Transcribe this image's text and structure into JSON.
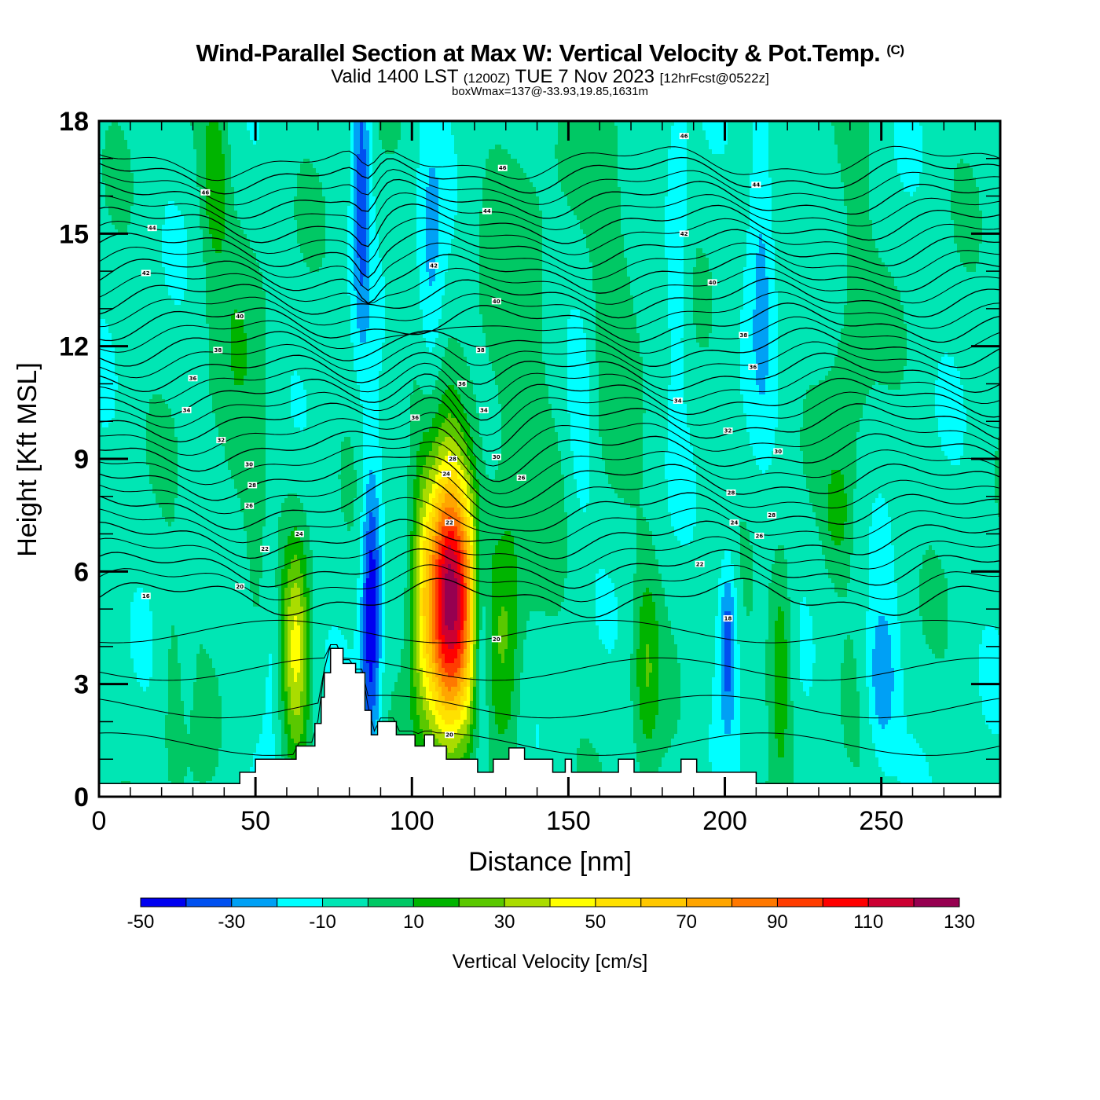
{
  "header": {
    "title": "Wind-Parallel Section at Max W: Vertical Velocity & Pot.Temp.",
    "copyright": "(C)",
    "subtitle_main_1": "Valid 1400 LST",
    "subtitle_small_1": "(1200Z)",
    "subtitle_main_2": "TUE 7 Nov 2023",
    "subtitle_small_2": "[12hrFcst@0522z]",
    "boxline": "boxWmax=137@-33.93,19.85,1631m"
  },
  "chart_data": {
    "type": "heatmap",
    "title": "Wind-Parallel Section at Max W: Vertical Velocity & Pot.Temp.",
    "xlabel": "Distance [nm]",
    "ylabel": "Height [Kft MSL]",
    "xlim": [
      0,
      288
    ],
    "ylim": [
      0,
      18
    ],
    "x_ticks": [
      "0",
      "50",
      "100",
      "150",
      "200",
      "250"
    ],
    "x_tick_values": [
      0,
      50,
      100,
      150,
      200,
      250
    ],
    "y_ticks": [
      "0",
      "3",
      "6",
      "9",
      "12",
      "15",
      "18"
    ],
    "y_tick_values": [
      0,
      3,
      6,
      9,
      12,
      15,
      18
    ],
    "colorbar": {
      "title": "Vertical Velocity [cm/s]",
      "labels": [
        "-50",
        "-30",
        "-10",
        "10",
        "30",
        "50",
        "70",
        "90",
        "110",
        "130"
      ],
      "bounds": [
        -50,
        -40,
        -30,
        -20,
        -10,
        0,
        10,
        20,
        30,
        40,
        50,
        60,
        70,
        80,
        90,
        100,
        110,
        120,
        130
      ],
      "colors": [
        "#0000f0",
        "#0050f0",
        "#00a0f5",
        "#00ffff",
        "#00e6b4",
        "#00c864",
        "#00b400",
        "#5ac800",
        "#aadc00",
        "#ffff00",
        "#ffe100",
        "#ffc800",
        "#ffa500",
        "#ff7800",
        "#ff3c00",
        "#ff0000",
        "#cc0032",
        "#960050"
      ]
    },
    "background_level": -5,
    "features": [
      {
        "x": 112,
        "z": 5.3,
        "w": 130,
        "sx": 6,
        "sz": 2.6
      },
      {
        "x": 63,
        "z": 3.8,
        "w": 45,
        "sx": 3,
        "sz": 2.2
      },
      {
        "x": 87,
        "z": 5.0,
        "w": -45,
        "sx": 2.2,
        "sz": 2.8
      },
      {
        "x": 122,
        "z": 4.3,
        "w": -35,
        "sx": 2.0,
        "sz": 2.0
      },
      {
        "x": 201,
        "z": 4.2,
        "w": -32,
        "sx": 2.0,
        "sz": 1.6
      },
      {
        "x": 250,
        "z": 3.1,
        "w": -25,
        "sx": 3.5,
        "sz": 1.5
      },
      {
        "x": 84,
        "z": 16.5,
        "w": -30,
        "sx": 2.0,
        "sz": 3.0
      },
      {
        "x": 218,
        "z": 3.5,
        "w": 25,
        "sx": 2.5,
        "sz": 2.0
      },
      {
        "x": 175,
        "z": 3.5,
        "w": 22,
        "sx": 3.0,
        "sz": 2.0
      },
      {
        "x": 130,
        "z": 4.0,
        "w": 22,
        "sx": 3.5,
        "sz": 2.5
      },
      {
        "x": 236,
        "z": 7.5,
        "w": 15,
        "sx": 3.0,
        "sz": 1.0
      },
      {
        "x": 37,
        "z": 16.5,
        "w": 22,
        "sx": 3.0,
        "sz": 1.5
      },
      {
        "x": 103,
        "z": 5.5,
        "w": 20,
        "sx": 2.5,
        "sz": 2.5
      },
      {
        "x": 45,
        "z": 10.5,
        "w": 10,
        "sx": 8.0,
        "sz": 4.0
      },
      {
        "x": 135,
        "z": 11.5,
        "w": 10,
        "sx": 10.0,
        "sz": 5.0
      },
      {
        "x": 165,
        "z": 14.0,
        "w": 10,
        "sx": 6.0,
        "sz": 4.0
      },
      {
        "x": 25,
        "z": 2.5,
        "w": 10,
        "sx": 4.0,
        "sz": 2.5
      },
      {
        "x": 240,
        "z": 13.0,
        "w": 10,
        "sx": 5.0,
        "sz": 5.0
      },
      {
        "x": 106,
        "z": 13.5,
        "w": -18,
        "sx": 3.0,
        "sz": 3.0
      },
      {
        "x": 212,
        "z": 15.0,
        "w": -18,
        "sx": 3.0,
        "sz": 3.5
      },
      {
        "x": 185,
        "z": 15.0,
        "w": -14,
        "sx": 2.5,
        "sz": 3.0
      },
      {
        "x": 55,
        "z": 4.5,
        "w": -12,
        "sx": 2.0,
        "sz": 2.0
      },
      {
        "x": 28,
        "z": 4.0,
        "w": -12,
        "sx": 2.0,
        "sz": 2.0
      },
      {
        "x": 154,
        "z": 10.0,
        "w": -12,
        "sx": 3.0,
        "sz": 2.0
      }
    ],
    "terrain": {
      "x": [
        0,
        45,
        45,
        50,
        50,
        63,
        63,
        69,
        69,
        71,
        71,
        72,
        72,
        74,
        74,
        78,
        78,
        82,
        82,
        85,
        85,
        87,
        87,
        89,
        89,
        95,
        95,
        101,
        101,
        104,
        104,
        107,
        107,
        111,
        111,
        121,
        121,
        126,
        126,
        131,
        131,
        136,
        136,
        145,
        145,
        149,
        149,
        151,
        151,
        166,
        166,
        171,
        171,
        186,
        186,
        191,
        191,
        210,
        210,
        217,
        217,
        288
      ],
      "z": [
        0.35,
        0.35,
        0.65,
        0.65,
        1.0,
        1.0,
        1.35,
        1.35,
        1.95,
        1.95,
        2.65,
        2.65,
        3.3,
        3.3,
        3.95,
        3.95,
        3.55,
        3.55,
        3.3,
        3.3,
        2.3,
        2.3,
        1.65,
        1.65,
        2.0,
        2.0,
        1.65,
        1.65,
        1.35,
        1.35,
        1.65,
        1.65,
        1.35,
        1.35,
        1.0,
        1.0,
        0.65,
        0.65,
        1.0,
        1.0,
        1.3,
        1.3,
        1.0,
        1.0,
        0.65,
        0.65,
        1.0,
        1.0,
        0.65,
        0.65,
        1.0,
        1.0,
        0.65,
        0.65,
        1.0,
        1.0,
        0.65,
        0.65,
        0.35,
        0.35,
        0.35,
        0.35
      ]
    },
    "isentropes": {
      "levels": [
        16,
        18,
        20,
        22,
        24,
        26,
        28,
        30,
        32,
        34,
        36,
        38,
        40,
        42,
        44,
        46,
        48
      ],
      "labels": [
        {
          "text": "16",
          "x": 15,
          "z": 5.35
        },
        {
          "text": "18",
          "x": 201,
          "z": 4.75
        },
        {
          "text": "20",
          "x": 45,
          "z": 5.6
        },
        {
          "text": "20",
          "x": 127,
          "z": 4.2
        },
        {
          "text": "20",
          "x": 112,
          "z": 1.65
        },
        {
          "text": "22",
          "x": 53,
          "z": 6.6
        },
        {
          "text": "22",
          "x": 112,
          "z": 7.3
        },
        {
          "text": "22",
          "x": 192,
          "z": 6.2
        },
        {
          "text": "24",
          "x": 64,
          "z": 7.0
        },
        {
          "text": "24",
          "x": 111,
          "z": 8.6
        },
        {
          "text": "24",
          "x": 203,
          "z": 7.3
        },
        {
          "text": "26",
          "x": 48,
          "z": 7.75
        },
        {
          "text": "26",
          "x": 135,
          "z": 8.5
        },
        {
          "text": "26",
          "x": 211,
          "z": 6.95
        },
        {
          "text": "28",
          "x": 49,
          "z": 8.3
        },
        {
          "text": "28",
          "x": 113,
          "z": 9.0
        },
        {
          "text": "28",
          "x": 202,
          "z": 8.1
        },
        {
          "text": "28",
          "x": 215,
          "z": 7.5
        },
        {
          "text": "30",
          "x": 48,
          "z": 8.85
        },
        {
          "text": "30",
          "x": 127,
          "z": 9.05
        },
        {
          "text": "30",
          "x": 217,
          "z": 9.2
        },
        {
          "text": "32",
          "x": 39,
          "z": 9.5
        },
        {
          "text": "32",
          "x": 201,
          "z": 9.75
        },
        {
          "text": "34",
          "x": 28,
          "z": 10.3
        },
        {
          "text": "34",
          "x": 123,
          "z": 10.3
        },
        {
          "text": "34",
          "x": 185,
          "z": 10.55
        },
        {
          "text": "36",
          "x": 30,
          "z": 11.15
        },
        {
          "text": "36",
          "x": 101,
          "z": 10.1
        },
        {
          "text": "36",
          "x": 116,
          "z": 11.0
        },
        {
          "text": "36",
          "x": 209,
          "z": 11.45
        },
        {
          "text": "38",
          "x": 38,
          "z": 11.9
        },
        {
          "text": "38",
          "x": 122,
          "z": 11.9
        },
        {
          "text": "38",
          "x": 206,
          "z": 12.3
        },
        {
          "text": "40",
          "x": 45,
          "z": 12.8
        },
        {
          "text": "40",
          "x": 127,
          "z": 13.2
        },
        {
          "text": "40",
          "x": 196,
          "z": 13.7
        },
        {
          "text": "42",
          "x": 15,
          "z": 13.95
        },
        {
          "text": "42",
          "x": 107,
          "z": 14.15
        },
        {
          "text": "42",
          "x": 187,
          "z": 15.0
        },
        {
          "text": "44",
          "x": 17,
          "z": 15.15
        },
        {
          "text": "44",
          "x": 124,
          "z": 15.6
        },
        {
          "text": "44",
          "x": 210,
          "z": 16.3
        },
        {
          "text": "46",
          "x": 34,
          "z": 16.1
        },
        {
          "text": "46",
          "x": 129,
          "z": 16.75
        },
        {
          "text": "46",
          "x": 187,
          "z": 17.6
        }
      ]
    }
  }
}
